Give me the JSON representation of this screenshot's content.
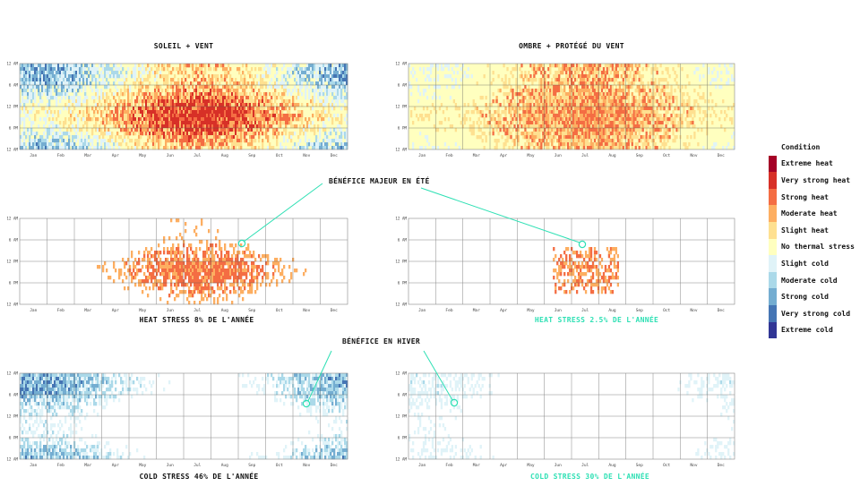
{
  "colors": {
    "extreme_heat": "#a50026",
    "very_strong_heat": "#d73027",
    "strong_heat": "#f46d43",
    "moderate_heat": "#fdae61",
    "slight_heat": "#fee090",
    "no_thermal_stress": "#ffffbf",
    "slight_cold": "#e0f3f8",
    "moderate_cold": "#abd9e9",
    "strong_cold": "#74add1",
    "very_strong_cold": "#4575b4",
    "extreme_cold": "#313695",
    "accent": "#2ee0b4"
  },
  "legend": {
    "title": "Condition",
    "items": [
      {
        "label": "Extreme heat",
        "color": "#a50026"
      },
      {
        "label": "Very strong heat",
        "color": "#d73027"
      },
      {
        "label": "Strong heat",
        "color": "#f46d43"
      },
      {
        "label": "Moderate heat",
        "color": "#fdae61"
      },
      {
        "label": "Slight heat",
        "color": "#fee090"
      },
      {
        "label": "No thermal stress",
        "color": "#ffffbf"
      },
      {
        "label": "Slight cold",
        "color": "#e0f3f8"
      },
      {
        "label": "Moderate cold",
        "color": "#abd9e9"
      },
      {
        "label": "Strong cold",
        "color": "#74add1"
      },
      {
        "label": "Very strong cold",
        "color": "#4575b4"
      },
      {
        "label": "Extreme cold",
        "color": "#313695"
      }
    ]
  },
  "titles": {
    "left": "SOLEIL + VENT",
    "right": "OMBRE + PROTÉGÉ DU VENT"
  },
  "callouts": {
    "summer": "BÉNÉFICE MAJEUR EN ÉTÉ",
    "winter": "BÉNÉFICE EN HIVER"
  },
  "chart_data": [
    {
      "id": "soleil_vent_all",
      "type": "heatmap",
      "title": "SOLEIL + VENT",
      "x": [
        "Jan",
        "Feb",
        "Mar",
        "Apr",
        "May",
        "Jun",
        "Jul",
        "Aug",
        "Sep",
        "Oct",
        "Nov",
        "Dec"
      ],
      "yticks": [
        "12 AM",
        "6 AM",
        "12 PM",
        "6 PM",
        "12 AM"
      ],
      "levels": [
        "Extreme cold",
        "Very strong cold",
        "Strong cold",
        "Moderate cold",
        "Slight cold",
        "No thermal stress",
        "Slight heat",
        "Moderate heat",
        "Strong heat",
        "Very strong heat",
        "Extreme heat"
      ],
      "monthly_dominant": [
        "Moderate cold",
        "Moderate cold",
        "Slight cold",
        "No thermal stress",
        "No thermal stress",
        "Strong heat",
        "Strong heat",
        "Moderate heat",
        "No thermal stress",
        "Slight cold",
        "Moderate cold",
        "Moderate cold"
      ]
    },
    {
      "id": "ombre_protege_all",
      "type": "heatmap",
      "title": "OMBRE + PROTÉGÉ DU VENT",
      "x": [
        "Jan",
        "Feb",
        "Mar",
        "Apr",
        "May",
        "Jun",
        "Jul",
        "Aug",
        "Sep",
        "Oct",
        "Nov",
        "Dec"
      ],
      "yticks": [
        "12 AM",
        "6 AM",
        "12 PM",
        "6 PM",
        "12 AM"
      ],
      "monthly_dominant": [
        "Slight cold",
        "No thermal stress",
        "No thermal stress",
        "No thermal stress",
        "No thermal stress",
        "No thermal stress",
        "Slight heat",
        "Slight heat",
        "No thermal stress",
        "No thermal stress",
        "Slight cold",
        "Slight cold"
      ]
    },
    {
      "id": "soleil_vent_heat",
      "type": "heatmap",
      "caption": "HEAT STRESS 8% DE L'ANNÉE",
      "x": [
        "Jan",
        "Feb",
        "Mar",
        "Apr",
        "May",
        "Jun",
        "Jul",
        "Aug",
        "Sep",
        "Oct",
        "Nov",
        "Dec"
      ],
      "yticks": [
        "12 AM",
        "6 AM",
        "12 PM",
        "6 PM",
        "12 AM"
      ],
      "heat_stress_percent": 8
    },
    {
      "id": "ombre_protege_heat",
      "type": "heatmap",
      "caption": "HEAT STRESS 2.5% DE L'ANNÉE",
      "x": [
        "Jan",
        "Feb",
        "Mar",
        "Apr",
        "May",
        "Jun",
        "Jul",
        "Aug",
        "Sep",
        "Oct",
        "Nov",
        "Dec"
      ],
      "yticks": [
        "12 AM",
        "6 AM",
        "12 PM",
        "6 PM",
        "12 AM"
      ],
      "heat_stress_percent": 2.5
    },
    {
      "id": "soleil_vent_cold",
      "type": "heatmap",
      "caption": "COLD STRESS 46% DE L'ANNÉE",
      "x": [
        "Jan",
        "Feb",
        "Mar",
        "Apr",
        "May",
        "Jun",
        "Jul",
        "Aug",
        "Sep",
        "Oct",
        "Nov",
        "Dec"
      ],
      "yticks": [
        "12 AM",
        "6 AM",
        "12 PM",
        "6 PM",
        "12 AM"
      ],
      "cold_stress_percent": 46
    },
    {
      "id": "ombre_protege_cold",
      "type": "heatmap",
      "caption": "COLD STRESS 30% DE L'ANNÉE",
      "x": [
        "Jan",
        "Feb",
        "Mar",
        "Apr",
        "May",
        "Jun",
        "Jul",
        "Aug",
        "Sep",
        "Oct",
        "Nov",
        "Dec"
      ],
      "yticks": [
        "12 AM",
        "6 AM",
        "12 PM",
        "6 PM",
        "12 AM"
      ],
      "cold_stress_percent": 30
    }
  ]
}
